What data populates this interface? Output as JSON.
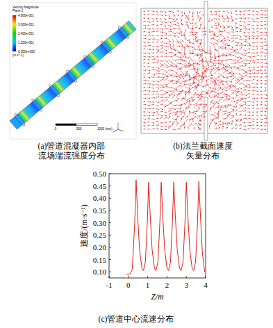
{
  "panel_a": {
    "caption_lines": [
      "(a)管道混凝器内部",
      "流场湍流强度分布"
    ],
    "colorbar_title": "Velocity Magnitude",
    "colorbar_subtitle": "Plane 1",
    "colorbar_ticks": [
      {
        "value": 0.48,
        "label": "4.800e-001"
      },
      {
        "value": 0.36,
        "label": "3.600e-001"
      },
      {
        "value": 0.24,
        "label": "2.400e-001"
      },
      {
        "value": 0.12,
        "label": "1.200e-001"
      },
      {
        "value": 0,
        "label": "0.000e+000"
      }
    ],
    "colorbar_unit": "[m s^-1]",
    "scale_labels": [
      "0",
      "500",
      "1000 (mm)"
    ]
  },
  "panel_b": {
    "caption_lines": [
      "(b)法兰截面速度",
      "矢量分布"
    ]
  },
  "chart_data": {
    "type": "line",
    "caption": "(c)管道中心流速分布",
    "x_label": "Z/m",
    "y_label": "速度/(m·s⁻¹)",
    "x": [
      -0.1,
      0.1,
      0.2,
      0.33,
      0.4,
      0.48,
      0.58,
      0.7,
      0.78,
      0.88,
      0.98,
      1.05,
      1.13,
      1.23,
      1.35,
      1.43,
      1.53,
      1.63,
      1.7,
      1.78,
      1.88,
      2.0,
      2.08,
      2.18,
      2.28,
      2.35,
      2.43,
      2.53,
      2.65,
      2.73,
      2.83,
      2.93,
      3.0,
      3.08,
      3.18,
      3.3,
      3.38,
      3.48,
      3.58,
      3.65,
      3.73,
      3.83,
      3.95
    ],
    "series": [
      {
        "color": "#e0201b",
        "values": [
          0.088,
          0.092,
          0.11,
          0.3,
          0.475,
          0.33,
          0.19,
          0.115,
          0.105,
          0.14,
          0.3,
          0.465,
          0.33,
          0.19,
          0.115,
          0.105,
          0.14,
          0.3,
          0.465,
          0.33,
          0.19,
          0.115,
          0.105,
          0.14,
          0.3,
          0.465,
          0.33,
          0.19,
          0.115,
          0.105,
          0.14,
          0.3,
          0.465,
          0.33,
          0.19,
          0.115,
          0.105,
          0.14,
          0.3,
          0.47,
          0.33,
          0.18,
          0.1
        ]
      }
    ],
    "xlim": [
      -1,
      4
    ],
    "ylim": [
      0.075,
      0.5
    ],
    "xticks": [
      -1,
      0,
      1,
      2,
      3,
      4
    ],
    "yticks": [
      {
        "value": 0.1,
        "label": "0.10"
      },
      {
        "value": 0.15,
        "label": "0.15"
      },
      {
        "value": 0.2,
        "label": "0.20"
      },
      {
        "value": 0.25,
        "label": "0.25"
      },
      {
        "value": 0.3,
        "label": "0.30"
      },
      {
        "value": 0.35,
        "label": "0.35"
      },
      {
        "value": 0.4,
        "label": "0.40"
      },
      {
        "value": 0.45,
        "label": "0.45"
      },
      {
        "value": 0.5,
        "label": "0.50"
      }
    ]
  }
}
